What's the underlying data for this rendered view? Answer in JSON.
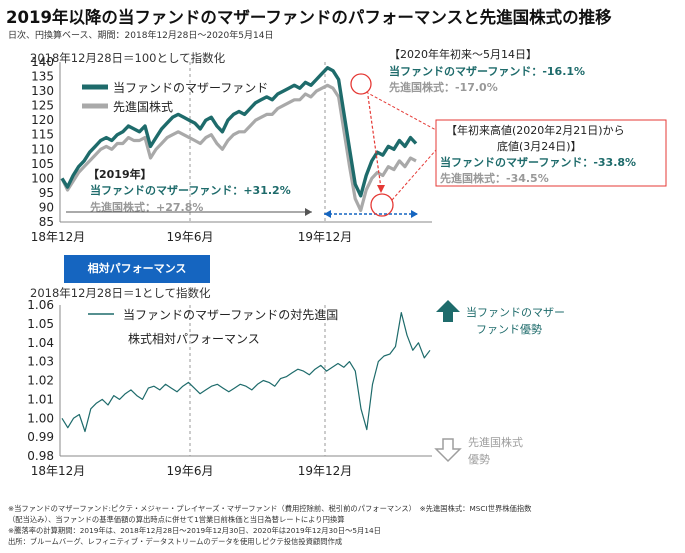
{
  "header": {
    "title": "2019年以降の当ファンドのマザーファンドのパフォーマンスと先進国株式の推移",
    "subtitle": "日次、円換算ベース、期間：2018年12月28日～2020年5月14日"
  },
  "colors": {
    "fund": "#1e6b6b",
    "benchmark": "#a9a9a9",
    "relative": "#1e6b6b",
    "accent_red": "#e53935",
    "accent_blue": "#1565c0",
    "arrow_up": "#1e6b6b",
    "arrow_down": "#bdbdbd"
  },
  "top_chart": {
    "index_note": "2018年12月28日＝100として指数化",
    "legend": {
      "fund": "当ファンドのマザーファンド",
      "benchmark": "先進国株式"
    },
    "box_2019": {
      "title": "【2019年】",
      "fund": "当ファンドのマザーファンド：+31.2%",
      "benchmark": "先進国株式：+27.8%"
    },
    "box_ytd": {
      "title": "【2020年年初来～5月14日】",
      "fund": "当ファンドのマザーファンド：-16.1%",
      "benchmark": "先進国株式：-17.0%"
    },
    "box_drawdown": {
      "title1": "【年初来高値(2020年2月21日)から",
      "title2": "底値(3月24日)】",
      "fund": "当ファンドのマザーファンド：-33.8%",
      "benchmark": "先進国株式：-34.5%"
    }
  },
  "relative_badge": "相対パフォーマンス",
  "bottom_chart": {
    "index_note": "2018年12月28日＝1として指数化",
    "legend1": "当ファンドのマザーファンドの対先進国",
    "legend2": "株式相対パフォーマンス",
    "up_label1": "当ファンドのマザー",
    "up_label2": "ファンド優勢",
    "down_label1": "先進国株式",
    "down_label2": "優勢"
  },
  "footnotes": [
    "※当ファンドのマザーファンド:ピクテ・メジャー・プレイヤーズ・マザーファンド（費用控除前、税引前のパフォーマンス）　※先進国株式：MSCI世界株価指数",
    "（配当込み）、当ファンドの基準価額の算出時点に併せて1営業日前株価と当日為替レートにより円換算",
    "※騰落率の計算期間：2019年は、2018年12月28日～2019年12月30日、2020年は2019年12月30日～5月14日",
    "出所：ブルームバーグ、レフィニティブ・データストリームのデータを使用しピクテ投信投資顧問作成"
  ],
  "chart_data": [
    {
      "type": "line",
      "x_ticks": [
        "18年12月",
        "19年6月",
        "19年12月"
      ],
      "y_ticks": [
        85,
        90,
        95,
        100,
        105,
        110,
        115,
        120,
        125,
        130,
        135,
        140
      ],
      "ylim": [
        85,
        140
      ],
      "series": [
        {
          "name": "当ファンドのマザーファンド",
          "values": [
            100,
            97,
            101,
            104,
            106,
            109,
            111,
            113,
            114,
            113,
            115,
            116,
            118,
            117,
            116,
            118,
            111,
            114,
            117,
            119,
            121,
            122,
            121,
            120,
            119,
            117,
            120,
            121,
            118,
            116,
            120,
            122,
            123,
            122,
            124,
            126,
            127,
            128,
            127,
            129,
            130,
            131,
            132,
            131,
            133,
            132,
            134,
            136,
            138,
            137,
            134,
            122,
            110,
            98,
            94,
            101,
            106,
            109,
            108,
            111,
            110,
            113,
            111,
            114,
            112
          ]
        },
        {
          "name": "先進国株式",
          "values": [
            100,
            96,
            99,
            102,
            104,
            106,
            108,
            110,
            111,
            110,
            112,
            112,
            114,
            113,
            113,
            114,
            107,
            110,
            112,
            114,
            115,
            116,
            115,
            114,
            113,
            112,
            114,
            115,
            112,
            110,
            113,
            115,
            116,
            116,
            118,
            120,
            121,
            122,
            122,
            124,
            125,
            126,
            127,
            127,
            129,
            128,
            130,
            131,
            132,
            131,
            128,
            116,
            104,
            93,
            89,
            96,
            100,
            102,
            101,
            104,
            103,
            106,
            104,
            107,
            106
          ]
        }
      ]
    },
    {
      "type": "line",
      "x_ticks": [
        "18年12月",
        "19年6月",
        "19年12月"
      ],
      "y_ticks": [
        0.98,
        0.99,
        1.0,
        1.01,
        1.02,
        1.03,
        1.04,
        1.05,
        1.06
      ],
      "ylim": [
        0.98,
        1.06
      ],
      "series": [
        {
          "name": "当ファンドのマザーファンドの対先進国株式相対パフォーマンス",
          "values": [
            1.0,
            0.995,
            1.0,
            1.002,
            0.993,
            1.005,
            1.008,
            1.01,
            1.007,
            1.012,
            1.01,
            1.013,
            1.015,
            1.012,
            1.01,
            1.016,
            1.017,
            1.015,
            1.018,
            1.016,
            1.014,
            1.017,
            1.019,
            1.016,
            1.013,
            1.015,
            1.017,
            1.018,
            1.016,
            1.014,
            1.016,
            1.018,
            1.017,
            1.015,
            1.018,
            1.02,
            1.019,
            1.017,
            1.021,
            1.022,
            1.024,
            1.026,
            1.025,
            1.023,
            1.026,
            1.028,
            1.025,
            1.027,
            1.029,
            1.027,
            1.03,
            1.025,
            1.005,
            0.994,
            1.018,
            1.03,
            1.033,
            1.034,
            1.038,
            1.056,
            1.044,
            1.036,
            1.04,
            1.032,
            1.036
          ]
        }
      ]
    }
  ]
}
